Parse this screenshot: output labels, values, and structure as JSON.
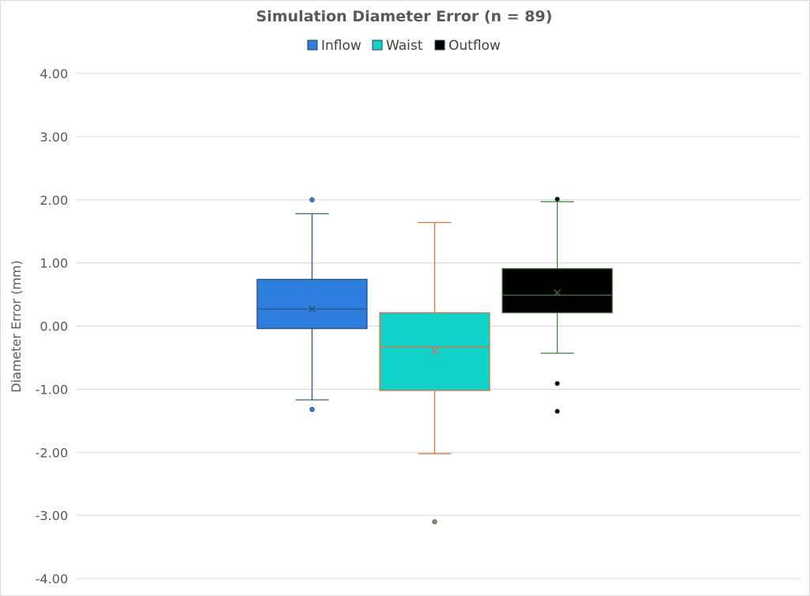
{
  "chart_data": {
    "type": "box",
    "title": "Simulation Diameter Error (n = 89)",
    "ylabel": "Diameter Error (mm)",
    "xlabel": "",
    "ylim": [
      -4.0,
      4.0
    ],
    "yticks": [
      "4.00",
      "3.00",
      "2.00",
      "1.00",
      "0.00",
      "-1.00",
      "-2.00",
      "-3.00",
      "-4.00"
    ],
    "grid": true,
    "legend_position": "top",
    "series": [
      {
        "name": "Inflow",
        "color": "#2e7ee0",
        "line_color": "#1f4e79",
        "min": -1.17,
        "q1": -0.04,
        "median": 0.27,
        "mean": 0.27,
        "q3": 0.74,
        "max": 1.78,
        "outliers": [
          2.0,
          -1.32
        ]
      },
      {
        "name": "Waist",
        "color": "#12d1c8",
        "line_color": "#e06a3a",
        "min": -2.02,
        "q1": -1.02,
        "median": -0.33,
        "mean": -0.39,
        "q3": 0.21,
        "max": 1.64,
        "outliers": [
          -3.1
        ]
      },
      {
        "name": "Outflow",
        "color": "#000000",
        "line_color": "#3d7a3d",
        "min": -0.43,
        "q1": 0.21,
        "median": 0.49,
        "mean": 0.53,
        "q3": 0.91,
        "max": 1.97,
        "outliers": [
          2.01,
          -0.91,
          -1.35
        ]
      }
    ]
  }
}
